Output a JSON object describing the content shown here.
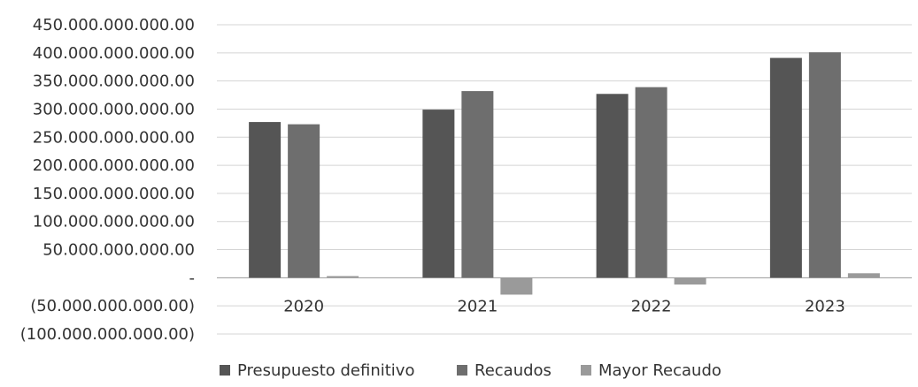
{
  "chart_data": {
    "type": "bar",
    "title": "",
    "xlabel": "",
    "ylabel": "",
    "categories": [
      "2020",
      "2021",
      "2022",
      "2023"
    ],
    "series": [
      {
        "name": "Presupuesto definitivo",
        "color": "#555555",
        "values": [
          277000000000,
          299000000000,
          327000000000,
          391000000000
        ]
      },
      {
        "name": "Recaudos",
        "color": "#6e6e6e",
        "values": [
          273000000000,
          332000000000,
          339000000000,
          401000000000
        ]
      },
      {
        "name": "Mayor Recaudo",
        "color": "#9a9a9a",
        "values": [
          3000000000,
          -30000000000,
          -12000000000,
          8000000000
        ]
      }
    ],
    "ylim": [
      -100000000000,
      450000000000
    ],
    "yticks": [
      450000000000,
      400000000000,
      350000000000,
      300000000000,
      250000000000,
      200000000000,
      150000000000,
      100000000000,
      50000000000,
      0,
      -50000000000,
      -100000000000
    ],
    "ytick_labels": [
      "450.000.000.000.00",
      "400.000.000.000.00",
      "350.000.000.000.00",
      "300.000.000.000.00",
      "250.000.000.000.00",
      "200.000.000.000.00",
      "150.000.000.000.00",
      "100.000.000.000.00",
      "50.000.000.000.00",
      "-",
      "(50.000.000.000.00)",
      "(100.000.000.000.00)"
    ],
    "grid": true,
    "legend_position": "bottom"
  }
}
